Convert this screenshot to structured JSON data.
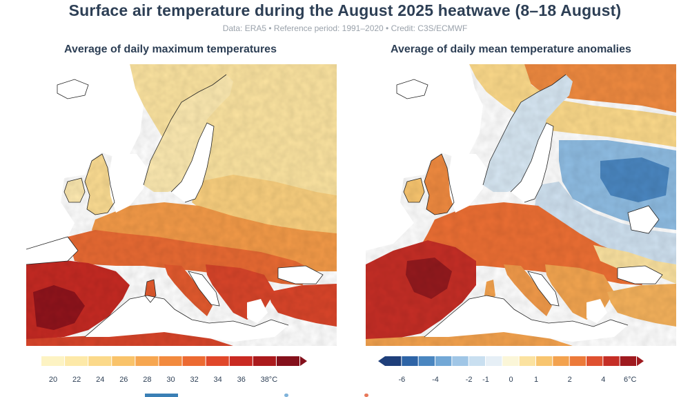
{
  "title": "Surface air temperature during the August 2025 heatwave (8–18 August)",
  "subtitle": "Data: ERA5 • Reference period: 1991–2020 • Credit: C3S/ECMWF",
  "left_panel": {
    "title": "Average of daily maximum temperatures",
    "legend": {
      "colors": [
        "#fdf3c3",
        "#fde9a8",
        "#fbd98a",
        "#f9c36a",
        "#f6a650",
        "#f28a3e",
        "#ec6a32",
        "#e0472a",
        "#c92a22",
        "#ab1a1c",
        "#84101b"
      ],
      "ticks": [
        "20",
        "22",
        "24",
        "26",
        "28",
        "30",
        "32",
        "34",
        "36",
        "38°C"
      ]
    }
  },
  "right_panel": {
    "title": "Average of daily mean temperature anomalies",
    "legend": {
      "colors": [
        "#1f3f7a",
        "#2e64a6",
        "#4a86c0",
        "#73a8d6",
        "#a0c6e6",
        "#c9dff0",
        "#e6eff6",
        "#fbf6d8",
        "#fbe2a0",
        "#f8c56f",
        "#f3a24e",
        "#ec7a3a",
        "#df5130",
        "#c52e26",
        "#9f1a1f"
      ],
      "ticks": [
        "-6",
        "-4",
        "-2",
        "-1",
        "0",
        "1",
        "2",
        "4",
        "6°C"
      ]
    }
  }
}
